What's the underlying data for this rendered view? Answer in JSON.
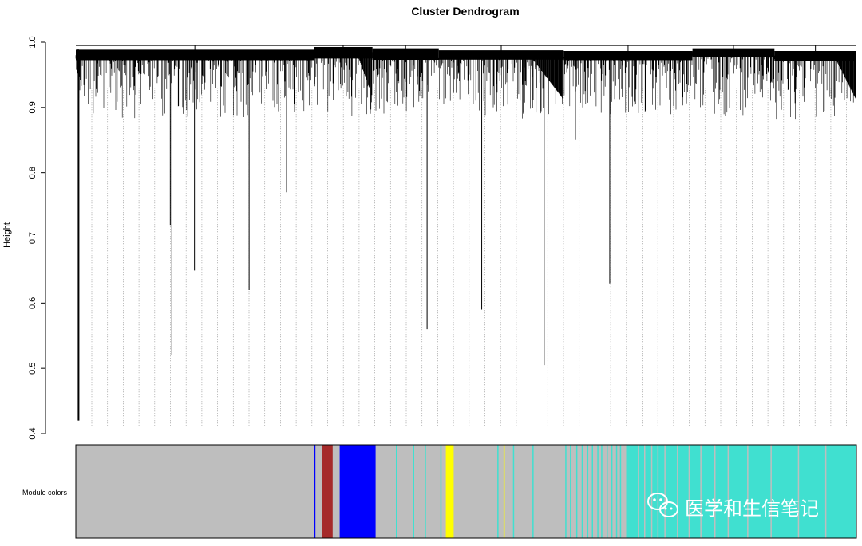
{
  "chart_data": {
    "type": "dendrogram",
    "title": "Cluster Dendrogram",
    "ylabel": "Height",
    "xlabel": "",
    "ylim": [
      0.4,
      1.0
    ],
    "yticks": [
      "0.4",
      "0.5",
      "0.6",
      "0.7",
      "0.8",
      "0.9",
      "1.0"
    ],
    "ytick_values": [
      0.4,
      0.5,
      0.6,
      0.7,
      0.8,
      0.9,
      1.0
    ],
    "root_height": 0.995,
    "clusters": [
      {
        "start": 0.0,
        "end": 0.305,
        "top": 0.988
      },
      {
        "start": 0.305,
        "end": 0.38,
        "top": 0.992
      },
      {
        "start": 0.38,
        "end": 0.465,
        "top": 0.99
      },
      {
        "start": 0.465,
        "end": 0.625,
        "top": 0.987
      },
      {
        "start": 0.625,
        "end": 0.79,
        "top": 0.986
      },
      {
        "start": 0.79,
        "end": 0.895,
        "top": 0.99
      },
      {
        "start": 0.895,
        "end": 1.0,
        "top": 0.986
      }
    ],
    "notable_leaf_heights": [
      {
        "pos": 0.004,
        "height": 0.42
      },
      {
        "pos": 0.123,
        "height": 0.52
      },
      {
        "pos": 0.152,
        "height": 0.65
      },
      {
        "pos": 0.121,
        "height": 0.72
      },
      {
        "pos": 0.222,
        "height": 0.62
      },
      {
        "pos": 0.45,
        "height": 0.56
      },
      {
        "pos": 0.52,
        "height": 0.59
      },
      {
        "pos": 0.6,
        "height": 0.505
      },
      {
        "pos": 0.684,
        "height": 0.63
      },
      {
        "pos": 0.27,
        "height": 0.77
      },
      {
        "pos": 0.64,
        "height": 0.85
      }
    ],
    "module_colors_label": "Module colors",
    "module_colors": [
      {
        "color": "grey",
        "hex": "#bebebe"
      },
      {
        "color": "blue",
        "hex": "#0000ff"
      },
      {
        "color": "brown",
        "hex": "#a52a2a"
      },
      {
        "color": "yellow",
        "hex": "#ffff00"
      },
      {
        "color": "turquoise",
        "hex": "#40e0d0"
      }
    ],
    "module_segments": [
      {
        "from": 0.0,
        "to": 0.305,
        "color": "#bebebe"
      },
      {
        "from": 0.305,
        "to": 0.307,
        "color": "#0000ff"
      },
      {
        "from": 0.307,
        "to": 0.316,
        "color": "#bebebe"
      },
      {
        "from": 0.316,
        "to": 0.329,
        "color": "#a52a2a"
      },
      {
        "from": 0.329,
        "to": 0.338,
        "color": "#bebebe"
      },
      {
        "from": 0.338,
        "to": 0.34,
        "color": "#0000ff"
      },
      {
        "from": 0.34,
        "to": 0.384,
        "color": "#0000ff"
      },
      {
        "from": 0.384,
        "to": 0.474,
        "color": "#bebebe"
      },
      {
        "from": 0.474,
        "to": 0.484,
        "color": "#ffff00"
      },
      {
        "from": 0.484,
        "to": 0.626,
        "color": "#bebebe"
      },
      {
        "from": 0.626,
        "to": 0.705,
        "color": "#bebebe"
      },
      {
        "from": 0.705,
        "to": 1.0,
        "color": "#40e0d0"
      }
    ],
    "module_stripes": [
      {
        "pos": 0.41,
        "color": "#40e0d0"
      },
      {
        "pos": 0.432,
        "color": "#40e0d0"
      },
      {
        "pos": 0.447,
        "color": "#40e0d0"
      },
      {
        "pos": 0.467,
        "color": "#40e0d0"
      },
      {
        "pos": 0.54,
        "color": "#40e0d0"
      },
      {
        "pos": 0.548,
        "color": "#ffff00"
      },
      {
        "pos": 0.56,
        "color": "#40e0d0"
      },
      {
        "pos": 0.585,
        "color": "#40e0d0"
      },
      {
        "pos": 0.627,
        "color": "#40e0d0"
      },
      {
        "pos": 0.633,
        "color": "#40e0d0"
      },
      {
        "pos": 0.641,
        "color": "#40e0d0"
      },
      {
        "pos": 0.648,
        "color": "#40e0d0"
      },
      {
        "pos": 0.655,
        "color": "#40e0d0"
      },
      {
        "pos": 0.661,
        "color": "#40e0d0"
      },
      {
        "pos": 0.668,
        "color": "#40e0d0"
      },
      {
        "pos": 0.673,
        "color": "#40e0d0"
      },
      {
        "pos": 0.68,
        "color": "#40e0d0"
      },
      {
        "pos": 0.686,
        "color": "#40e0d0"
      },
      {
        "pos": 0.692,
        "color": "#40e0d0"
      },
      {
        "pos": 0.697,
        "color": "#40e0d0"
      },
      {
        "pos": 0.72,
        "color": "#bebebe"
      },
      {
        "pos": 0.728,
        "color": "#bebebe"
      },
      {
        "pos": 0.737,
        "color": "#bebebe"
      },
      {
        "pos": 0.745,
        "color": "#bebebe"
      },
      {
        "pos": 0.754,
        "color": "#bebebe"
      },
      {
        "pos": 0.77,
        "color": "#bebebe"
      },
      {
        "pos": 0.785,
        "color": "#bebebe"
      },
      {
        "pos": 0.8,
        "color": "#bebebe"
      },
      {
        "pos": 0.818,
        "color": "#bebebe"
      },
      {
        "pos": 0.835,
        "color": "#bebebe"
      },
      {
        "pos": 0.86,
        "color": "#bebebe"
      },
      {
        "pos": 0.89,
        "color": "#bebebe"
      },
      {
        "pos": 0.925,
        "color": "#bebebe"
      },
      {
        "pos": 0.96,
        "color": "#bebebe"
      }
    ],
    "grid": false,
    "legend": "none"
  },
  "watermark": {
    "text": "医学和生信笔记",
    "icon": "wechat-icon"
  }
}
